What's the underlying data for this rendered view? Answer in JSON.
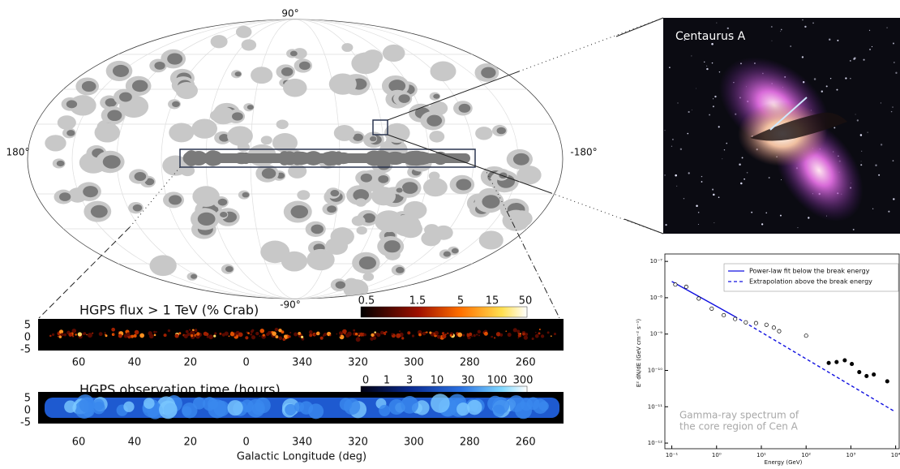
{
  "sky_map": {
    "labels": {
      "top": "90°",
      "bottom": "-90°",
      "left": "180°",
      "right": "-180°"
    }
  },
  "cen_a": {
    "title": "Centaurus A"
  },
  "hgps_flux": {
    "title": "HGPS flux > 1 TeV (% Crab)",
    "lat_ticks": [
      5,
      0,
      -5
    ],
    "lon_ticks": [
      60,
      40,
      20,
      0,
      340,
      320,
      300,
      280,
      260
    ],
    "colorbar_ticks": [
      0.5,
      1.5,
      5,
      15,
      50
    ]
  },
  "hgps_exposure": {
    "title": "HGPS observation time (hours)",
    "lat_ticks": [
      5,
      0,
      -5
    ],
    "lon_ticks": [
      60,
      40,
      20,
      0,
      340,
      320,
      300,
      280,
      260
    ],
    "colorbar_ticks": [
      0,
      1,
      3,
      10,
      30,
      100,
      300
    ],
    "xlabel": "Galactic Longitude (deg)"
  },
  "chart_data": {
    "type": "scatter",
    "xlabel": "Energy (GeV)",
    "ylabel": "E² dN/dE (GeV cm⁻² s⁻¹)",
    "log_x": true,
    "log_y": true,
    "xlim": [
      0.07,
      12000
    ],
    "ylim": [
      7e-13,
      1.6e-07
    ],
    "xticks": [
      {
        "value": 0.1,
        "label": "10⁻¹"
      },
      {
        "value": 1,
        "label": "10⁰"
      },
      {
        "value": 10,
        "label": "10¹"
      },
      {
        "value": 100,
        "label": "10²"
      },
      {
        "value": 1000,
        "label": "10³"
      },
      {
        "value": 10000,
        "label": "10⁴"
      }
    ],
    "yticks": [
      {
        "value": 1e-12,
        "label": "10⁻¹²"
      },
      {
        "value": 1e-11,
        "label": "10⁻¹¹"
      },
      {
        "value": 1e-10,
        "label": "10⁻¹⁰"
      },
      {
        "value": 1e-09,
        "label": "10⁻⁹"
      },
      {
        "value": 1e-08,
        "label": "10⁻⁸"
      },
      {
        "value": 1e-07,
        "label": "10⁻⁷"
      }
    ],
    "legend": "upper right",
    "annotation": [
      "Gamma-ray spectrum of",
      "the core region of Cen A"
    ],
    "series": [
      {
        "name": "Power-law fit below the break energy",
        "color": "#1010e0",
        "style": "solid",
        "x": [
          0.1,
          2.5
        ],
        "values": [
          2.8e-08,
          3.1e-09
        ]
      },
      {
        "name": "Extrapolation above the break energy",
        "color": "#1010e0",
        "style": "dashed",
        "x": [
          2.5,
          9500
        ],
        "values": [
          3.1e-09,
          7.4e-12
        ]
      },
      {
        "color": "#000000",
        "marker": "open",
        "x": [
          0.12,
          0.21,
          0.4,
          0.78,
          1.45,
          2.6,
          4.5,
          7.6,
          13,
          19,
          25,
          100
        ],
        "values": [
          2.3e-08,
          2e-08,
          9.5e-09,
          5e-09,
          3.3e-09,
          2.6e-09,
          2.1e-09,
          2e-09,
          1.8e-09,
          1.5e-09,
          1.2e-09,
          9e-10
        ]
      },
      {
        "color": "#000000",
        "marker": "filled",
        "x": [
          320,
          480,
          730,
          1050,
          1540,
          2240,
          3250,
          6500
        ],
        "values": [
          1.6e-10,
          1.7e-10,
          1.9e-10,
          1.5e-10,
          9e-11,
          7e-11,
          7.7e-11,
          5e-11
        ]
      }
    ]
  }
}
